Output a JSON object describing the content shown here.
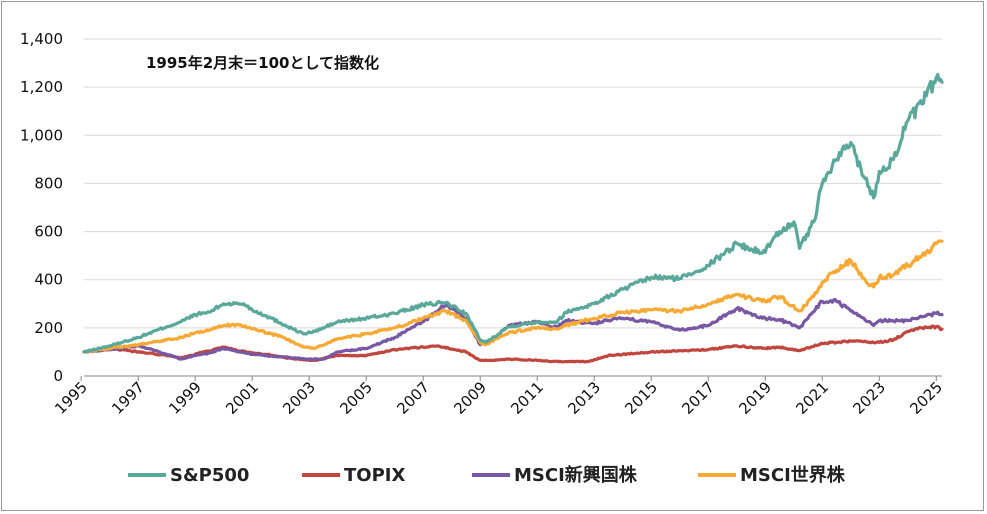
{
  "chart_data": {
    "type": "line",
    "annotation": "1995年2月末＝100として指数化",
    "xlim": [
      1995.1,
      2025.2
    ],
    "ylim": [
      0,
      1400
    ],
    "y_ticks": [
      "0",
      "200",
      "400",
      "600",
      "800",
      "1,000",
      "1,200",
      "1,400"
    ],
    "x_ticks": [
      "1995",
      "1997",
      "1999",
      "2001",
      "2003",
      "2005",
      "2007",
      "2009",
      "2011",
      "2013",
      "2015",
      "2017",
      "2019",
      "2021",
      "2023",
      "2025"
    ],
    "grid": "horizontal",
    "legend": "bottom",
    "series": [
      {
        "name": "S&P500",
        "color": "#5aa89a",
        "x": [
          1995.1,
          1996,
          1997,
          1998,
          1998.5,
          1999,
          1999.5,
          2000,
          2000.7,
          2001,
          2001.5,
          2002,
          2002.8,
          2003.2,
          2004,
          2005,
          2006,
          2007,
          2007.8,
          2008.5,
          2009.0,
          2009.2,
          2010,
          2011,
          2011.7,
          2012,
          2013,
          2014,
          2015,
          2016,
          2017,
          2018,
          2018.9,
          2019.5,
          2020.0,
          2020.2,
          2020.7,
          2021,
          2021.5,
          2022.0,
          2022.5,
          2022.8,
          2023,
          2023.5,
          2024,
          2024.5,
          2025.0,
          2025.2
        ],
        "y": [
          100,
          125,
          160,
          205,
          225,
          255,
          265,
          300,
          300,
          275,
          250,
          220,
          175,
          185,
          225,
          240,
          260,
          295,
          305,
          260,
          150,
          140,
          205,
          225,
          225,
          265,
          300,
          360,
          410,
          405,
          460,
          550,
          510,
          600,
          640,
          530,
          640,
          800,
          900,
          970,
          820,
          740,
          850,
          900,
          1060,
          1130,
          1240,
          1220
        ]
      },
      {
        "name": "TOPIX",
        "color": "#c0463e",
        "x": [
          1995.1,
          1996,
          1997,
          1998,
          1998.5,
          1999,
          2000,
          2000.5,
          2001,
          2001.5,
          2002,
          2002.5,
          2003.2,
          2004,
          2005,
          2006,
          2007,
          2007.5,
          2008.5,
          2009.0,
          2009.5,
          2010,
          2011,
          2011.5,
          2012,
          2012.8,
          2013.5,
          2014,
          2015,
          2016,
          2017,
          2018,
          2018.9,
          2019.5,
          2020.2,
          2021,
          2022,
          2023,
          2023.5,
          2024,
          2024.5,
          2025.0,
          2025.2
        ],
        "y": [
          100,
          115,
          100,
          85,
          75,
          90,
          120,
          105,
          95,
          90,
          80,
          70,
          65,
          85,
          85,
          110,
          120,
          125,
          100,
          65,
          65,
          70,
          65,
          60,
          60,
          60,
          85,
          90,
          100,
          105,
          110,
          125,
          115,
          120,
          105,
          135,
          145,
          140,
          150,
          185,
          200,
          205,
          195
        ]
      },
      {
        "name": "MSCI新興国株",
        "color": "#7857a3",
        "x": [
          1995.1,
          1996,
          1997,
          1997.5,
          1998,
          1998.5,
          1999,
          1999.5,
          2000,
          2000.5,
          2001,
          2002,
          2003,
          2003.5,
          2004,
          2005,
          2006,
          2007,
          2007.8,
          2008.5,
          2009.0,
          2009.5,
          2010,
          2011,
          2011.7,
          2012,
          2013,
          2014,
          2015,
          2016,
          2017,
          2018,
          2018.9,
          2019.5,
          2020.2,
          2021,
          2021.5,
          2022,
          2022.8,
          2023,
          2024,
          2024.5,
          2025.0,
          2025.2
        ],
        "y": [
          100,
          110,
          125,
          110,
          90,
          70,
          85,
          95,
          115,
          100,
          90,
          80,
          70,
          70,
          100,
          115,
          160,
          225,
          300,
          240,
          130,
          160,
          210,
          225,
          200,
          230,
          220,
          240,
          225,
          190,
          210,
          280,
          240,
          235,
          200,
          310,
          310,
          270,
          210,
          230,
          230,
          245,
          260,
          255
        ]
      },
      {
        "name": "MSCI世界株",
        "color": "#f7a934",
        "x": [
          1995.1,
          1996,
          1997,
          1998,
          1998.5,
          1999,
          1999.5,
          2000,
          2000.5,
          2001,
          2002,
          2002.8,
          2003.2,
          2004,
          2005,
          2006,
          2007,
          2007.8,
          2008.5,
          2009.0,
          2009.2,
          2010,
          2011,
          2011.7,
          2012,
          2013,
          2014,
          2015,
          2016,
          2017,
          2018,
          2018.9,
          2019.5,
          2020.2,
          2020.7,
          2021,
          2021.5,
          2022.0,
          2022.5,
          2022.8,
          2023,
          2023.5,
          2024,
          2024.5,
          2025.0,
          2025.2
        ],
        "y": [
          100,
          115,
          130,
          150,
          160,
          180,
          190,
          210,
          215,
          195,
          165,
          120,
          115,
          155,
          175,
          200,
          240,
          270,
          230,
          140,
          130,
          180,
          200,
          195,
          210,
          240,
          265,
          275,
          270,
          300,
          340,
          310,
          330,
          270,
          330,
          390,
          440,
          480,
          400,
          370,
          410,
          420,
          460,
          500,
          550,
          560
        ]
      }
    ]
  }
}
